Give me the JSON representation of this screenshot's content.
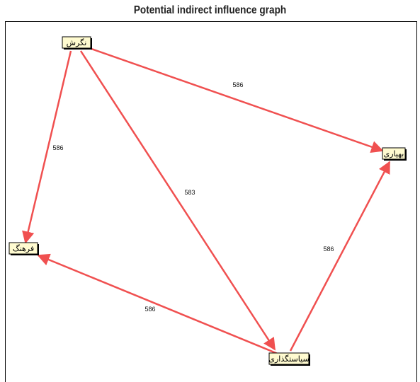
{
  "title": "Potential indirect influence graph",
  "colors": {
    "edge": "#f05050",
    "node_fill": "#fffbd0",
    "node_border": "#000000"
  },
  "nodes": [
    {
      "id": "n1",
      "label": "نگرش"
    },
    {
      "id": "n2",
      "label": "بهیاری"
    },
    {
      "id": "n3",
      "label": "فرهنگ"
    },
    {
      "id": "n4",
      "label": "سیاستگذاری"
    }
  ],
  "edges": [
    {
      "from": "n1",
      "to": "n2",
      "label": "586"
    },
    {
      "from": "n1",
      "to": "n3",
      "label": "586"
    },
    {
      "from": "n1",
      "to": "n4",
      "label": "583"
    },
    {
      "from": "n4",
      "to": "n3",
      "label": "586"
    },
    {
      "from": "n4",
      "to": "n2",
      "label": "586"
    }
  ]
}
